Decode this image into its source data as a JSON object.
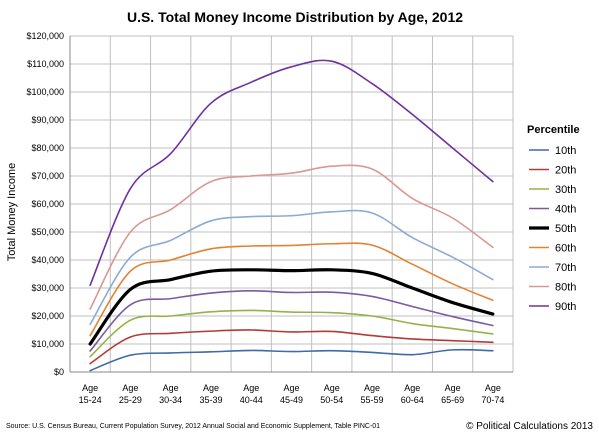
{
  "chart_data": {
    "type": "line",
    "title": "U.S. Total Money Income Distribution by Age, 2012",
    "ylabel": "Total Money Income",
    "xlabel": "",
    "ylim": [
      0,
      120000
    ],
    "ytick_step": 10000,
    "ytick_labels": [
      "$0",
      "$10,000",
      "$20,000",
      "$30,000",
      "$40,000",
      "$50,000",
      "$60,000",
      "$70,000",
      "$80,000",
      "$90,000",
      "$100,000",
      "$110,000",
      "$120,000"
    ],
    "categories": [
      [
        "Age",
        "15-24"
      ],
      [
        "Age",
        "25-29"
      ],
      [
        "Age",
        "30-34"
      ],
      [
        "Age",
        "35-39"
      ],
      [
        "Age",
        "40-44"
      ],
      [
        "Age",
        "45-49"
      ],
      [
        "Age",
        "50-54"
      ],
      [
        "Age",
        "55-59"
      ],
      [
        "Age",
        "60-64"
      ],
      [
        "Age",
        "65-69"
      ],
      [
        "Age",
        "70-74"
      ]
    ],
    "grid": true,
    "legend_title": "Percentile",
    "legend_position": "right",
    "series": [
      {
        "name": "10th",
        "color": "#3e6aa8",
        "width": 1.6,
        "values": [
          500,
          6000,
          6800,
          7200,
          7700,
          7300,
          7600,
          7000,
          6200,
          7900,
          7600
        ]
      },
      {
        "name": "20th",
        "color": "#b33b36",
        "width": 1.6,
        "values": [
          3000,
          12500,
          13800,
          14600,
          15000,
          14300,
          14500,
          13000,
          11800,
          11200,
          10600
        ]
      },
      {
        "name": "30th",
        "color": "#93b349",
        "width": 1.6,
        "values": [
          5500,
          18500,
          20000,
          21500,
          22000,
          21400,
          21200,
          20000,
          17300,
          15500,
          13600
        ]
      },
      {
        "name": "40th",
        "color": "#7b5aa0",
        "width": 1.6,
        "values": [
          7500,
          24000,
          26200,
          28200,
          29000,
          28400,
          28500,
          27000,
          23400,
          19800,
          16600
        ]
      },
      {
        "name": "50th",
        "color": "#000000",
        "width": 3.2,
        "values": [
          10000,
          29500,
          33000,
          36000,
          36500,
          36200,
          36500,
          35200,
          30000,
          24800,
          20700
        ]
      },
      {
        "name": "60th",
        "color": "#e38232",
        "width": 1.6,
        "values": [
          13000,
          36000,
          40000,
          44000,
          45000,
          45200,
          45800,
          45300,
          38500,
          31500,
          25600
        ]
      },
      {
        "name": "70th",
        "color": "#8aabd6",
        "width": 1.6,
        "values": [
          17000,
          41000,
          47000,
          54000,
          55500,
          55800,
          57200,
          56800,
          48000,
          41000,
          33000
        ]
      },
      {
        "name": "80th",
        "color": "#d99892",
        "width": 1.6,
        "values": [
          22500,
          50000,
          58000,
          68000,
          70000,
          71000,
          73500,
          72500,
          62000,
          55000,
          44500
        ]
      },
      {
        "name": "90th",
        "color": "#7030a0",
        "width": 1.6,
        "values": [
          31000,
          65500,
          78000,
          96000,
          103500,
          109000,
          111000,
          103000,
          92000,
          80000,
          68000
        ]
      }
    ]
  },
  "footer": {
    "source": "Source: U.S. Census Bureau, Current Population Survey, 2012 Annual Social and Economic Supplement, Table PINC-01",
    "credit": "© Political Calculations 2013"
  }
}
